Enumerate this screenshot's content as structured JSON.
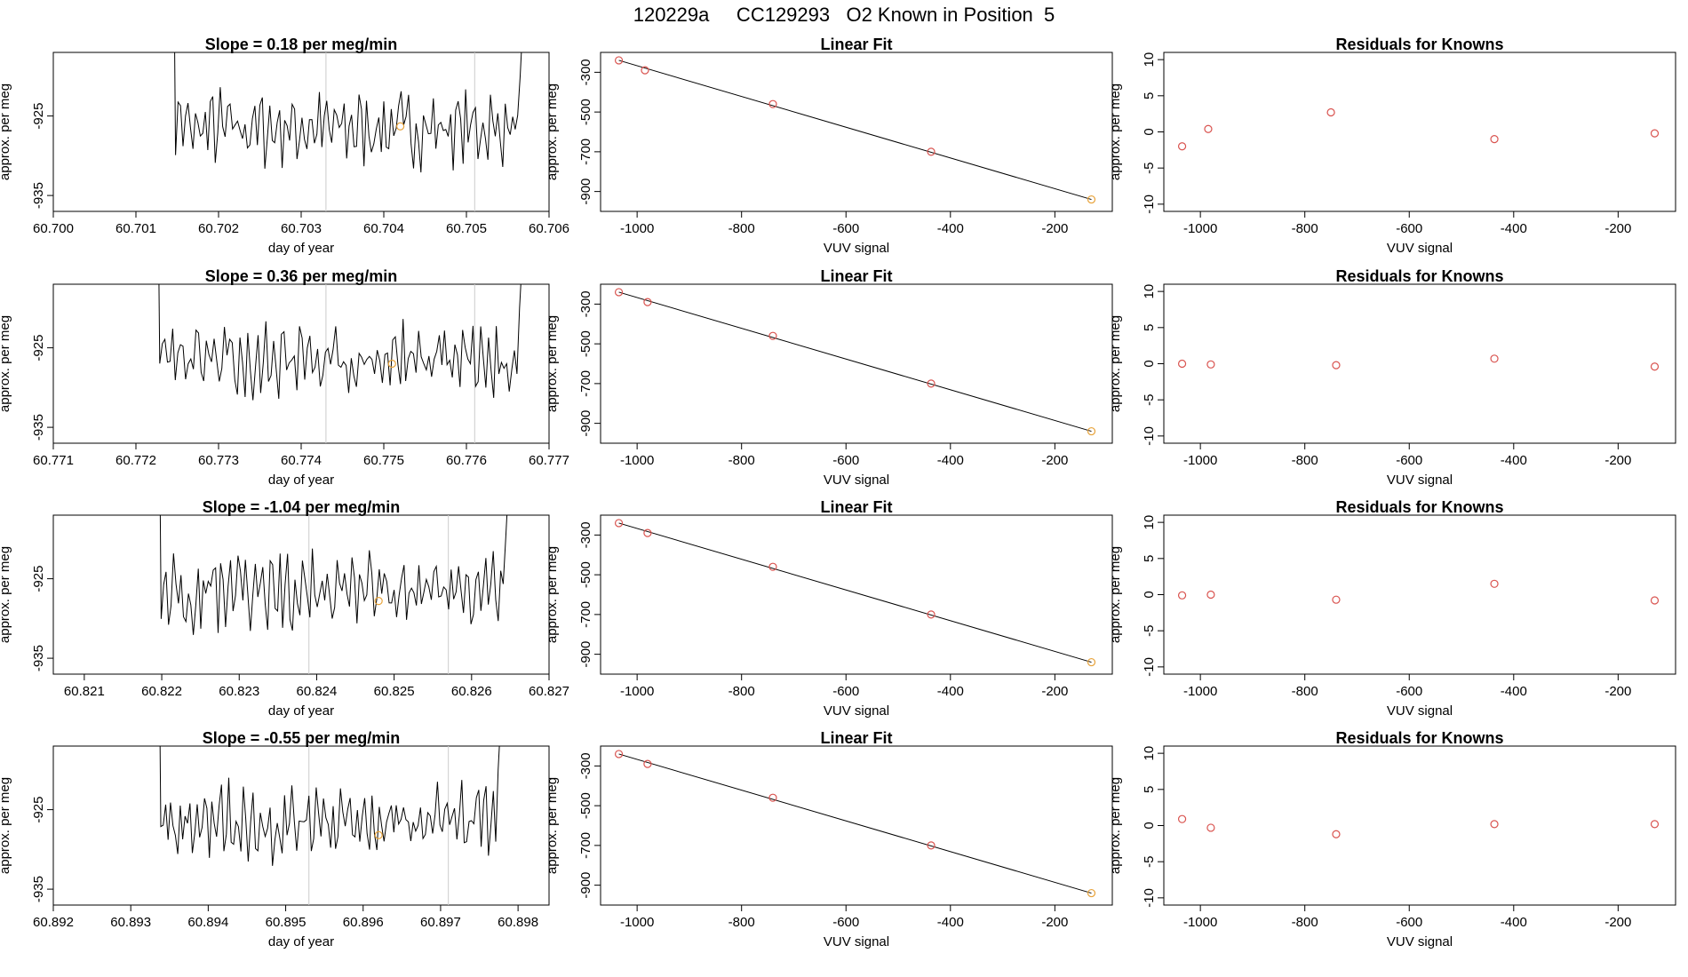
{
  "page_title": "120229a     CC129293   O2 Known in Position  5",
  "colors": {
    "line": "#000000",
    "points": "#d9534f",
    "marker": "#e8a33a",
    "grid": "#cccccc"
  },
  "chart_data": [
    {
      "type": "line",
      "row": 0,
      "title": "Slope =  0.18  per meg/min",
      "xlabel": "day of year",
      "ylabel": "approx. per meg",
      "xlim": [
        60.7,
        60.706
      ],
      "ylim": [
        -937,
        -917
      ],
      "xticks": [
        "60.700",
        "60.701",
        "60.702",
        "60.703",
        "60.704",
        "60.705",
        "60.706"
      ],
      "yticks": [
        "-925",
        "-935"
      ],
      "yticks_values": [
        -925,
        -935
      ],
      "data_range": [
        60.7013,
        60.7058
      ],
      "vlines": [
        60.7033,
        60.7051
      ],
      "marker_point": [
        60.7042,
        -926.3
      ]
    },
    {
      "type": "scatter",
      "row": 0,
      "title": "Linear Fit",
      "xlabel": "VUV signal",
      "ylabel": "approx. per meg",
      "xlim": [
        -1070,
        -90
      ],
      "ylim": [
        -1000,
        -200
      ],
      "xticks": [
        "-1000",
        "-800",
        "-600",
        "-400",
        "-200"
      ],
      "xticks_values": [
        -1000,
        -800,
        -600,
        -400,
        -200
      ],
      "yticks": [
        "-300",
        "-500",
        "-700",
        "-900"
      ],
      "yticks_values": [
        -300,
        -500,
        -700,
        -900
      ],
      "x": [
        -1035,
        -985,
        -740,
        -437,
        -130
      ],
      "y": [
        -240,
        -290,
        -460,
        -700,
        -940
      ]
    },
    {
      "type": "scatter",
      "row": 0,
      "title": "Residuals for Knowns",
      "xlabel": "VUV signal",
      "ylabel": "approx. per meg",
      "xlim": [
        -1070,
        -90
      ],
      "ylim": [
        -11,
        11
      ],
      "xticks": [
        "-1000",
        "-800",
        "-600",
        "-400",
        "-200"
      ],
      "xticks_values": [
        -1000,
        -800,
        -600,
        -400,
        -200
      ],
      "yticks": [
        "10",
        "5",
        "0",
        "-5",
        "-10"
      ],
      "yticks_values": [
        10,
        5,
        0,
        -5,
        -10
      ],
      "x": [
        -1035,
        -985,
        -750,
        -437,
        -130
      ],
      "y": [
        -2,
        0.4,
        2.7,
        -1,
        -0.2
      ]
    },
    {
      "type": "line",
      "row": 1,
      "title": "Slope =  0.36  per meg/min",
      "xlabel": "day of year",
      "ylabel": "approx. per meg",
      "xlim": [
        60.771,
        60.777
      ],
      "ylim": [
        -937,
        -917
      ],
      "xticks": [
        "60.771",
        "60.772",
        "60.773",
        "60.774",
        "60.775",
        "60.776",
        "60.777"
      ],
      "yticks": [
        "-925",
        "-935"
      ],
      "yticks_values": [
        -925,
        -935
      ],
      "data_range": [
        60.7721,
        60.7768
      ],
      "vlines": [
        60.7743,
        60.7761
      ],
      "marker_point": [
        60.7751,
        -927.0
      ]
    },
    {
      "type": "scatter",
      "row": 1,
      "title": "Linear Fit",
      "xlabel": "VUV signal",
      "ylabel": "approx. per meg",
      "xlim": [
        -1070,
        -90
      ],
      "ylim": [
        -1000,
        -200
      ],
      "xticks": [
        "-1000",
        "-800",
        "-600",
        "-400",
        "-200"
      ],
      "xticks_values": [
        -1000,
        -800,
        -600,
        -400,
        -200
      ],
      "yticks": [
        "-300",
        "-500",
        "-700",
        "-900"
      ],
      "yticks_values": [
        -300,
        -500,
        -700,
        -900
      ],
      "x": [
        -1035,
        -980,
        -740,
        -437,
        -130
      ],
      "y": [
        -240,
        -290,
        -460,
        -700,
        -940
      ]
    },
    {
      "type": "scatter",
      "row": 1,
      "title": "Residuals for Knowns",
      "xlabel": "VUV signal",
      "ylabel": "approx. per meg",
      "xlim": [
        -1070,
        -90
      ],
      "ylim": [
        -11,
        11
      ],
      "xticks": [
        "-1000",
        "-800",
        "-600",
        "-400",
        "-200"
      ],
      "xticks_values": [
        -1000,
        -800,
        -600,
        -400,
        -200
      ],
      "yticks": [
        "10",
        "5",
        "0",
        "-5",
        "-10"
      ],
      "yticks_values": [
        10,
        5,
        0,
        -5,
        -10
      ],
      "x": [
        -1035,
        -980,
        -740,
        -437,
        -130
      ],
      "y": [
        0,
        -0.1,
        -0.2,
        0.7,
        -0.4
      ]
    },
    {
      "type": "line",
      "row": 2,
      "title": "Slope =  -1.04  per meg/min",
      "xlabel": "day of year",
      "ylabel": "approx. per meg",
      "xlim": [
        60.8206,
        60.827
      ],
      "ylim": [
        -937,
        -917
      ],
      "xticks": [
        "60.821",
        "60.822",
        "60.823",
        "60.824",
        "60.825",
        "60.826",
        "60.827"
      ],
      "yticks": [
        "-925",
        "-935"
      ],
      "yticks_values": [
        -925,
        -935
      ],
      "data_range": [
        60.8218,
        60.8266
      ],
      "vlines": [
        60.8239,
        60.8257
      ],
      "marker_point": [
        60.8248,
        -927.8
      ]
    },
    {
      "type": "scatter",
      "row": 2,
      "title": "Linear Fit",
      "xlabel": "VUV signal",
      "ylabel": "approx. per meg",
      "xlim": [
        -1070,
        -90
      ],
      "ylim": [
        -1000,
        -200
      ],
      "xticks": [
        "-1000",
        "-800",
        "-600",
        "-400",
        "-200"
      ],
      "xticks_values": [
        -1000,
        -800,
        -600,
        -400,
        -200
      ],
      "yticks": [
        "-300",
        "-500",
        "-700",
        "-900"
      ],
      "yticks_values": [
        -300,
        -500,
        -700,
        -900
      ],
      "x": [
        -1035,
        -980,
        -740,
        -437,
        -130
      ],
      "y": [
        -240,
        -290,
        -460,
        -700,
        -940
      ]
    },
    {
      "type": "scatter",
      "row": 2,
      "title": "Residuals for Knowns",
      "xlabel": "VUV signal",
      "ylabel": "approx. per meg",
      "xlim": [
        -1070,
        -90
      ],
      "ylim": [
        -11,
        11
      ],
      "xticks": [
        "-1000",
        "-800",
        "-600",
        "-400",
        "-200"
      ],
      "xticks_values": [
        -1000,
        -800,
        -600,
        -400,
        -200
      ],
      "yticks": [
        "10",
        "5",
        "0",
        "-5",
        "-10"
      ],
      "yticks_values": [
        10,
        5,
        0,
        -5,
        -10
      ],
      "x": [
        -1035,
        -980,
        -740,
        -437,
        -130
      ],
      "y": [
        -0.1,
        0,
        -0.7,
        1.5,
        -0.8
      ]
    },
    {
      "type": "line",
      "row": 3,
      "title": "Slope =  -0.55  per meg/min",
      "xlabel": "day of year",
      "ylabel": "approx. per meg",
      "xlim": [
        60.892,
        60.8984
      ],
      "ylim": [
        -937,
        -917
      ],
      "xticks": [
        "60.892",
        "60.893",
        "60.894",
        "60.895",
        "60.896",
        "60.897",
        "60.898"
      ],
      "yticks": [
        "-925",
        "-935"
      ],
      "yticks_values": [
        -925,
        -935
      ],
      "data_range": [
        60.8932,
        60.8979
      ],
      "vlines": [
        60.8953,
        60.8971
      ],
      "marker_point": [
        60.8962,
        -928.2
      ]
    },
    {
      "type": "scatter",
      "row": 3,
      "title": "Linear Fit",
      "xlabel": "VUV signal",
      "ylabel": "approx. per meg",
      "xlim": [
        -1070,
        -90
      ],
      "ylim": [
        -1000,
        -200
      ],
      "xticks": [
        "-1000",
        "-800",
        "-600",
        "-400",
        "-200"
      ],
      "xticks_values": [
        -1000,
        -800,
        -600,
        -400,
        -200
      ],
      "yticks": [
        "-300",
        "-500",
        "-700",
        "-900"
      ],
      "yticks_values": [
        -300,
        -500,
        -700,
        -900
      ],
      "x": [
        -1035,
        -980,
        -740,
        -437,
        -130
      ],
      "y": [
        -240,
        -290,
        -460,
        -700,
        -940
      ]
    },
    {
      "type": "scatter",
      "row": 3,
      "title": "Residuals for Knowns",
      "xlabel": "VUV signal",
      "ylabel": "approx. per meg",
      "xlim": [
        -1070,
        -90
      ],
      "ylim": [
        -11,
        11
      ],
      "xticks": [
        "-1000",
        "-800",
        "-600",
        "-400",
        "-200"
      ],
      "xticks_values": [
        -1000,
        -800,
        -600,
        -400,
        -200
      ],
      "yticks": [
        "10",
        "5",
        "0",
        "-5",
        "-10"
      ],
      "yticks_values": [
        10,
        5,
        0,
        -5,
        -10
      ],
      "x": [
        -1035,
        -980,
        -740,
        -437,
        -130
      ],
      "y": [
        0.9,
        -0.3,
        -1.2,
        0.2,
        0.2
      ]
    }
  ]
}
